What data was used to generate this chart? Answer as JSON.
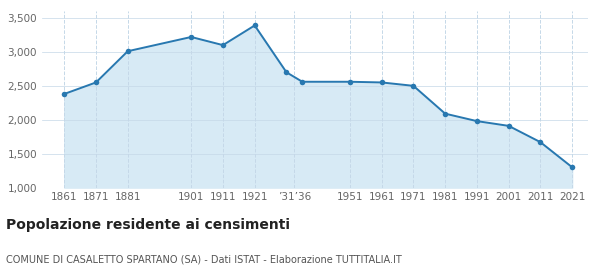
{
  "years": [
    1861,
    1871,
    1881,
    1901,
    1911,
    1921,
    1931,
    1936,
    1951,
    1961,
    1971,
    1981,
    1991,
    2001,
    2011,
    2021
  ],
  "population": [
    2380,
    2550,
    3010,
    3220,
    3100,
    3390,
    2700,
    2560,
    2560,
    2550,
    2500,
    2090,
    1980,
    1910,
    1670,
    1300
  ],
  "x_tick_positions": [
    1861,
    1871,
    1881,
    1901,
    1911,
    1921,
    1933.5,
    1951,
    1961,
    1971,
    1981,
    1991,
    2001,
    2011,
    2021
  ],
  "x_tick_labels": [
    "1861",
    "1871",
    "1881",
    "1901",
    "1911",
    "1921",
    "’31’36",
    "1951",
    "1961",
    "1971",
    "1981",
    "1991",
    "2001",
    "2011",
    "2021"
  ],
  "ylim_min": 1000,
  "ylim_max": 3600,
  "yticks": [
    1000,
    1500,
    2000,
    2500,
    3000,
    3500
  ],
  "xlim_min": 1854,
  "xlim_max": 2026,
  "line_color": "#2878b0",
  "fill_color": "#d7eaf5",
  "marker_color": "#2878b0",
  "marker_size": 16,
  "grid_color": "#c5d8e8",
  "bg_color": "#ffffff",
  "plot_bg_color": "#ffffff",
  "title": "Popolazione residente ai censimenti",
  "subtitle": "COMUNE DI CASALETTO SPARTANO (SA) - Dati ISTAT - Elaborazione TUTTITALIA.IT",
  "title_fontsize": 10,
  "subtitle_fontsize": 7,
  "tick_fontsize": 7.5,
  "tick_color": "#666666"
}
